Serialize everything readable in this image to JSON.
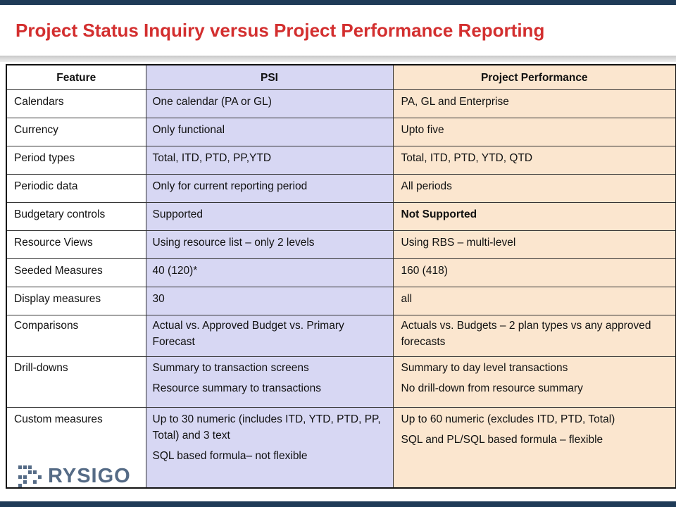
{
  "title": "Project Status Inquiry versus Project Performance Reporting",
  "columns": [
    "Feature",
    "PSI",
    "Project Performance"
  ],
  "rows": [
    {
      "feature": "Calendars",
      "psi": [
        "One calendar (PA or GL)"
      ],
      "pp": [
        "PA, GL and Enterprise"
      ]
    },
    {
      "feature": "Currency",
      "psi": [
        "Only functional"
      ],
      "pp": [
        "Upto five"
      ]
    },
    {
      "feature": "Period types",
      "psi": [
        "Total, ITD, PTD, PP,YTD"
      ],
      "pp": [
        "Total, ITD, PTD, YTD, QTD"
      ]
    },
    {
      "feature": "Periodic data",
      "psi": [
        "Only for current reporting period"
      ],
      "pp": [
        "All periods"
      ]
    },
    {
      "feature": "Budgetary controls",
      "psi": [
        "Supported"
      ],
      "pp": [
        "Not Supported"
      ]
    },
    {
      "feature": "Resource Views",
      "psi": [
        "Using resource list – only 2 levels"
      ],
      "pp": [
        "Using RBS – multi-level"
      ]
    },
    {
      "feature": "Seeded Measures",
      "psi": [
        "40 (120)*"
      ],
      "pp": [
        "160 (418)"
      ]
    },
    {
      "feature": "Display measures",
      "psi": [
        "30"
      ],
      "pp": [
        "all"
      ]
    },
    {
      "feature": "Comparisons",
      "psi": [
        "Actual vs. Approved Budget vs. Primary Forecast"
      ],
      "pp": [
        "Actuals vs. Budgets – 2 plan types vs any approved forecasts"
      ]
    },
    {
      "feature": "Drill-downs",
      "psi": [
        "Summary to transaction screens",
        "Resource summary to transactions"
      ],
      "pp": [
        "Summary to day level transactions",
        "No drill-down from resource summary"
      ]
    },
    {
      "feature": "Custom measures",
      "psi": [
        " Up to 30 numeric (includes ITD, YTD, PTD, PP,  Total) and 3 text",
        "SQL based formula– not flexible"
      ],
      "pp": [
        "Up to 60 numeric (excludes ITD, PTD, Total)",
        "SQL and PL/SQL based formula – flexible"
      ]
    }
  ],
  "logo": {
    "text": "RYSIGO",
    "color": "#556b86"
  },
  "colors": {
    "title": "#d32f2f",
    "psi_bg": "#d7d7f3",
    "pp_bg": "#fbe6cf",
    "bar": "#1f3b57"
  },
  "icons": {
    "logo_mark": "dotted-arrow-logo-icon"
  }
}
